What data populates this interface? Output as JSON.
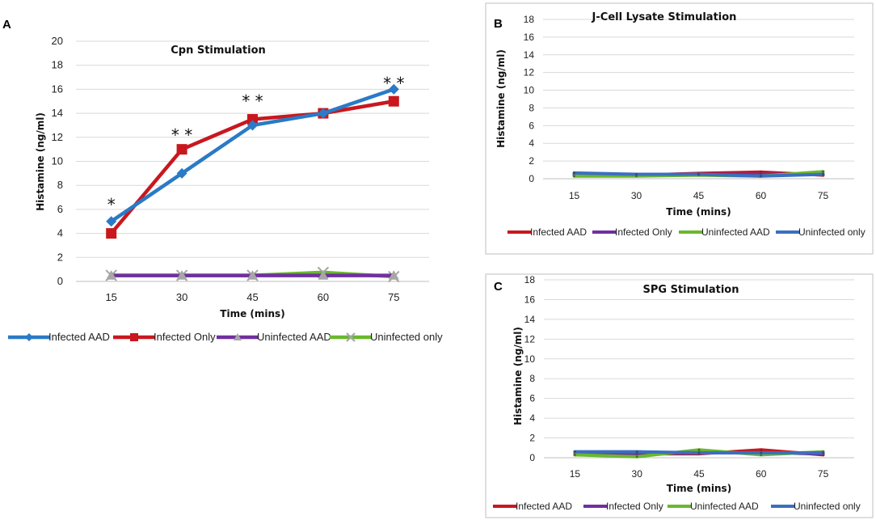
{
  "figure": {
    "panel_labels": [
      "A",
      "B",
      "C"
    ]
  },
  "colors": {
    "infected_aad_a": "#2a7ac6",
    "infected_only_a": "#c8181e",
    "uninfected_aad_a": "#7030a0",
    "uninfected_only_a": "#6ab82e",
    "red": "#c8181e",
    "purple": "#7030a0",
    "green": "#6ab82e",
    "blue": "#3b6fbf",
    "grid": "#d9d9d9",
    "frame": "#bfbfbf"
  },
  "chart_data": [
    {
      "panel": "A",
      "type": "line",
      "title": "Cpn Stimulation",
      "xlabel": "Time (mins)",
      "ylabel": "Histamine (ng/ml)",
      "categories": [
        "15",
        "30",
        "45",
        "60",
        "75"
      ],
      "yticks": [
        "0",
        "2",
        "4",
        "6",
        "8",
        "10",
        "12",
        "14",
        "16",
        "18",
        "20"
      ],
      "ylim": [
        0,
        20
      ],
      "grid": true,
      "legend_position": "bottom",
      "series": [
        {
          "name": "Infected AAD",
          "values": [
            5,
            9,
            13,
            14,
            16
          ],
          "marker": "diamond",
          "color_key": "infected_aad_a"
        },
        {
          "name": "Infected Only",
          "values": [
            4,
            11,
            13.5,
            14,
            15
          ],
          "marker": "square",
          "color_key": "infected_only_a"
        },
        {
          "name": "Uninfected AAD",
          "values": [
            0.5,
            0.5,
            0.5,
            0.5,
            0.5
          ],
          "marker": "triangle",
          "color_key": "uninfected_aad_a"
        },
        {
          "name": "Uninfected only",
          "values": [
            0.5,
            0.5,
            0.5,
            0.75,
            0.4
          ],
          "marker": "x",
          "color_key": "uninfected_only_a"
        }
      ],
      "annotations": [
        "*",
        "* *",
        "* *",
        "* *"
      ]
    },
    {
      "panel": "B",
      "type": "line",
      "title": "J-Cell Lysate Stimulation",
      "xlabel": "Time (mins)",
      "ylabel": "Histamine (ng/ml)",
      "categories": [
        "15",
        "30",
        "45",
        "60",
        "75"
      ],
      "yticks": [
        "0",
        "2",
        "4",
        "6",
        "8",
        "10",
        "12",
        "14",
        "16",
        "18"
      ],
      "ylim": [
        0,
        18
      ],
      "grid": true,
      "legend_position": "bottom",
      "series": [
        {
          "name": "Infected AAD",
          "values": [
            0.4,
            0.4,
            0.6,
            0.75,
            0.4
          ],
          "color_key": "red"
        },
        {
          "name": "Infected Only",
          "values": [
            0.45,
            0.4,
            0.5,
            0.5,
            0.5
          ],
          "color_key": "purple"
        },
        {
          "name": "Uninfected AAD",
          "values": [
            0.3,
            0.3,
            0.4,
            0.3,
            0.8
          ],
          "color_key": "green"
        },
        {
          "name": "Uninfected only",
          "values": [
            0.65,
            0.5,
            0.5,
            0.3,
            0.5
          ],
          "color_key": "blue"
        }
      ]
    },
    {
      "panel": "C",
      "type": "line",
      "title": "SPG Stimulation",
      "xlabel": "Time (mins)",
      "ylabel": "Histamine (ng/ml)",
      "categories": [
        "15",
        "30",
        "45",
        "60",
        "75"
      ],
      "yticks": [
        "0",
        "2",
        "4",
        "6",
        "8",
        "10",
        "12",
        "14",
        "16",
        "18"
      ],
      "ylim": [
        0,
        18
      ],
      "grid": true,
      "legend_position": "bottom",
      "series": [
        {
          "name": "Infected AAD",
          "values": [
            0.3,
            0.4,
            0.4,
            0.8,
            0.3
          ],
          "color_key": "red"
        },
        {
          "name": "Infected Only",
          "values": [
            0.4,
            0.4,
            0.5,
            0.5,
            0.4
          ],
          "color_key": "purple"
        },
        {
          "name": "Uninfected AAD",
          "values": [
            0.3,
            0.1,
            0.8,
            0.3,
            0.6
          ],
          "color_key": "green"
        },
        {
          "name": "Uninfected only",
          "values": [
            0.6,
            0.6,
            0.5,
            0.5,
            0.5
          ],
          "color_key": "blue"
        }
      ]
    }
  ]
}
